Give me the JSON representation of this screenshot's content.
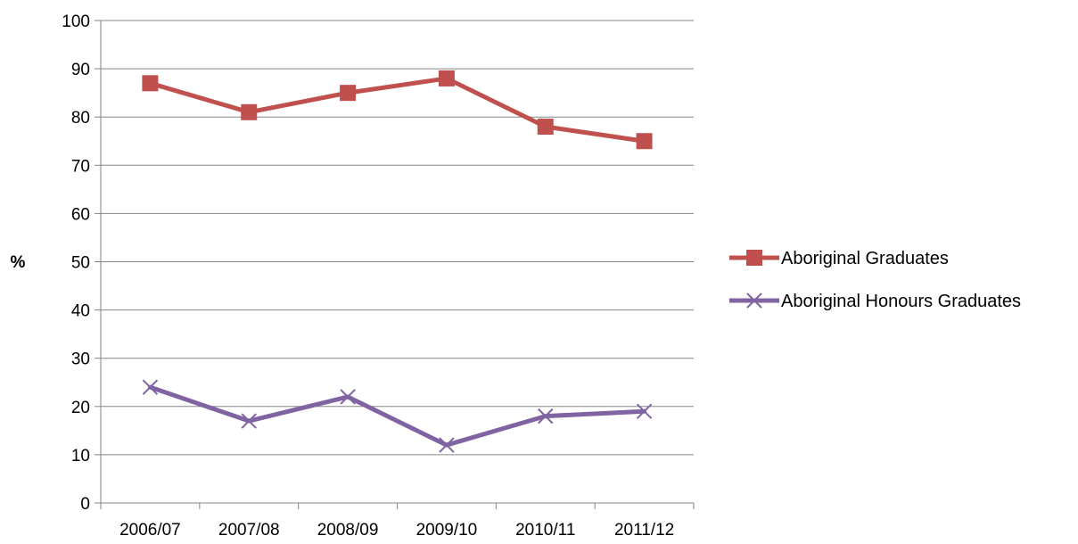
{
  "chart_data": {
    "type": "line",
    "title": "",
    "xlabel": "",
    "ylabel": "%",
    "ylim": [
      0,
      100
    ],
    "ytick_step": 10,
    "grid": "horizontal",
    "legend_position": "right",
    "categories": [
      "2006/07",
      "2007/08",
      "2008/09",
      "2009/10",
      "2010/11",
      "2011/12"
    ],
    "series": [
      {
        "name": "Aboriginal Graduates",
        "values": [
          87,
          81,
          85,
          88,
          78,
          75
        ],
        "color": "#C0504D",
        "marker": "square"
      },
      {
        "name": "Aboriginal Honours Graduates",
        "values": [
          24,
          17,
          22,
          12,
          18,
          19
        ],
        "color": "#8064A2",
        "marker": "x"
      }
    ]
  }
}
